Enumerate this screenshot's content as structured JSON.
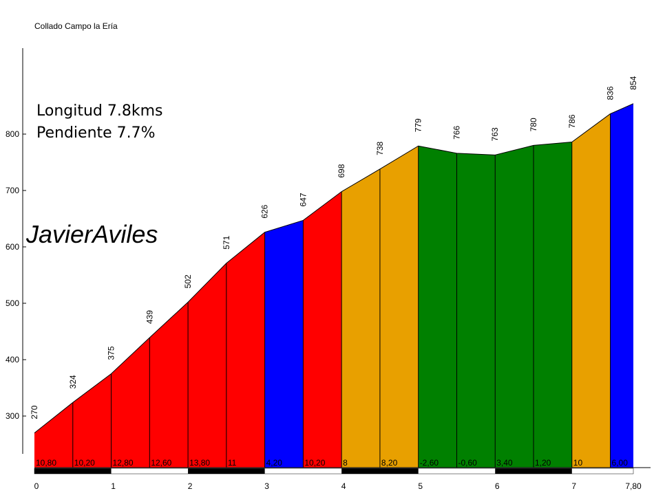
{
  "chart_data": {
    "type": "area",
    "title": "Collado Campo la Ería",
    "info": {
      "length_label": "Longitud 7.8kms",
      "gradient_label": "Pendiente 7.7%"
    },
    "watermark": "JavierAviles",
    "x": [
      0,
      0.5,
      1,
      1.5,
      2,
      2.5,
      3,
      3.5,
      4,
      4.5,
      5,
      5.5,
      6,
      6.5,
      7,
      7.5,
      7.8
    ],
    "elevations": [
      270,
      324,
      375,
      439,
      502,
      571,
      626,
      647,
      698,
      738,
      779,
      766,
      763,
      780,
      786,
      836,
      854
    ],
    "elevation_labels": [
      "270",
      "324",
      "375",
      "439",
      "502",
      "571",
      "626",
      "647",
      "698",
      "738",
      "779",
      "766",
      "763",
      "780",
      "786",
      "836",
      "854"
    ],
    "segment_gradients": [
      "10,80",
      "10,20",
      "12,80",
      "12,60",
      "13,80",
      "11",
      "4,20",
      "10,20",
      "8",
      "8,20",
      "-2,60",
      "-0,60",
      "3,40",
      "1,20",
      "10",
      "6,00"
    ],
    "segment_colors": [
      "#ff0000",
      "#ff0000",
      "#ff0000",
      "#ff0000",
      "#ff0000",
      "#ff0000",
      "#0000ff",
      "#ff0000",
      "#e8a000",
      "#e8a000",
      "#008000",
      "#008000",
      "#008000",
      "#008000",
      "#e8a000",
      "#0000ff"
    ],
    "x_ticks": [
      0,
      1,
      2,
      3,
      4,
      5,
      6,
      7,
      7.8
    ],
    "x_tick_labels": [
      "0",
      "1",
      "2",
      "3",
      "4",
      "5",
      "6",
      "7",
      "7,80"
    ],
    "y_ticks": [
      300,
      400,
      500,
      600,
      700,
      800
    ],
    "y_tick_labels": [
      "300",
      "400",
      "500",
      "600",
      "700",
      "800"
    ],
    "ylim": [
      227,
      940
    ],
    "xlim": [
      0,
      7.8
    ],
    "grid": false,
    "scale_bar_colors": [
      "#000000",
      "#ffffff"
    ]
  }
}
